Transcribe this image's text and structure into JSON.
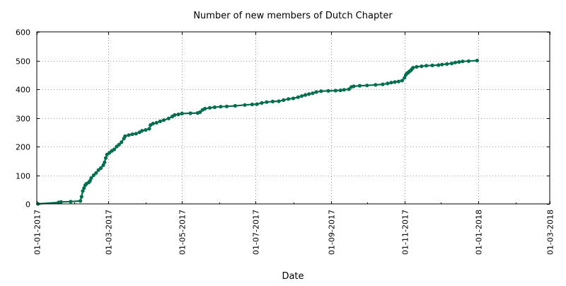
{
  "chart_data": {
    "type": "line",
    "title": "Number of new members of Dutch Chapter",
    "xlabel": "Date",
    "ylabel": "",
    "ylim": [
      0,
      600
    ],
    "xlim": [
      "2017-01-01",
      "2018-03-01"
    ],
    "grid": true,
    "y_ticks": [
      0,
      100,
      200,
      300,
      400,
      500,
      600
    ],
    "x_ticks": [
      {
        "date": "2017-01-01",
        "label": "01-01-2017"
      },
      {
        "date": "2017-03-01",
        "label": "01-03-2017"
      },
      {
        "date": "2017-05-01",
        "label": "01-05-2017"
      },
      {
        "date": "2017-07-01",
        "label": "01-07-2017"
      },
      {
        "date": "2017-09-01",
        "label": "01-09-2017"
      },
      {
        "date": "2017-11-01",
        "label": "01-11-2017"
      },
      {
        "date": "2018-01-01",
        "label": "01-01-2018"
      },
      {
        "date": "2018-03-01",
        "label": "01-03-2018"
      }
    ],
    "series": [
      {
        "color": "#006d4f",
        "points": [
          {
            "x": "2017-01-02",
            "y": 0
          },
          {
            "x": "2017-01-19",
            "y": 5
          },
          {
            "x": "2017-01-21",
            "y": 7
          },
          {
            "x": "2017-01-29",
            "y": 8
          },
          {
            "x": "2017-02-06",
            "y": 10
          },
          {
            "x": "2017-02-07",
            "y": 25
          },
          {
            "x": "2017-02-08",
            "y": 45
          },
          {
            "x": "2017-02-09",
            "y": 55
          },
          {
            "x": "2017-02-10",
            "y": 65
          },
          {
            "x": "2017-02-11",
            "y": 70
          },
          {
            "x": "2017-02-13",
            "y": 75
          },
          {
            "x": "2017-02-14",
            "y": 80
          },
          {
            "x": "2017-02-15",
            "y": 90
          },
          {
            "x": "2017-02-17",
            "y": 100
          },
          {
            "x": "2017-02-19",
            "y": 108
          },
          {
            "x": "2017-02-21",
            "y": 118
          },
          {
            "x": "2017-02-23",
            "y": 125
          },
          {
            "x": "2017-02-25",
            "y": 135
          },
          {
            "x": "2017-02-26",
            "y": 145
          },
          {
            "x": "2017-02-27",
            "y": 160
          },
          {
            "x": "2017-02-28",
            "y": 172
          },
          {
            "x": "2017-03-02",
            "y": 178
          },
          {
            "x": "2017-03-04",
            "y": 185
          },
          {
            "x": "2017-03-06",
            "y": 190
          },
          {
            "x": "2017-03-08",
            "y": 200
          },
          {
            "x": "2017-03-10",
            "y": 207
          },
          {
            "x": "2017-03-12",
            "y": 215
          },
          {
            "x": "2017-03-14",
            "y": 228
          },
          {
            "x": "2017-03-15",
            "y": 236
          },
          {
            "x": "2017-03-18",
            "y": 240
          },
          {
            "x": "2017-03-21",
            "y": 243
          },
          {
            "x": "2017-03-24",
            "y": 245
          },
          {
            "x": "2017-03-27",
            "y": 250
          },
          {
            "x": "2017-03-29",
            "y": 255
          },
          {
            "x": "2017-04-01",
            "y": 258
          },
          {
            "x": "2017-04-04",
            "y": 262
          },
          {
            "x": "2017-04-05",
            "y": 275
          },
          {
            "x": "2017-04-07",
            "y": 280
          },
          {
            "x": "2017-04-10",
            "y": 283
          },
          {
            "x": "2017-04-13",
            "y": 288
          },
          {
            "x": "2017-04-16",
            "y": 292
          },
          {
            "x": "2017-04-20",
            "y": 298
          },
          {
            "x": "2017-04-23",
            "y": 305
          },
          {
            "x": "2017-04-25",
            "y": 310
          },
          {
            "x": "2017-04-28",
            "y": 312
          },
          {
            "x": "2017-05-01",
            "y": 315
          },
          {
            "x": "2017-05-08",
            "y": 316
          },
          {
            "x": "2017-05-14",
            "y": 317
          },
          {
            "x": "2017-05-16",
            "y": 320
          },
          {
            "x": "2017-05-18",
            "y": 328
          },
          {
            "x": "2017-05-20",
            "y": 332
          },
          {
            "x": "2017-05-24",
            "y": 335
          },
          {
            "x": "2017-05-28",
            "y": 337
          },
          {
            "x": "2017-06-02",
            "y": 339
          },
          {
            "x": "2017-06-07",
            "y": 340
          },
          {
            "x": "2017-06-14",
            "y": 342
          },
          {
            "x": "2017-06-22",
            "y": 345
          },
          {
            "x": "2017-06-28",
            "y": 347
          },
          {
            "x": "2017-07-02",
            "y": 348
          },
          {
            "x": "2017-07-06",
            "y": 352
          },
          {
            "x": "2017-07-10",
            "y": 355
          },
          {
            "x": "2017-07-15",
            "y": 357
          },
          {
            "x": "2017-07-20",
            "y": 358
          },
          {
            "x": "2017-07-24",
            "y": 362
          },
          {
            "x": "2017-07-28",
            "y": 366
          },
          {
            "x": "2017-08-01",
            "y": 368
          },
          {
            "x": "2017-08-05",
            "y": 372
          },
          {
            "x": "2017-08-08",
            "y": 376
          },
          {
            "x": "2017-08-11",
            "y": 380
          },
          {
            "x": "2017-08-14",
            "y": 383
          },
          {
            "x": "2017-08-17",
            "y": 386
          },
          {
            "x": "2017-08-20",
            "y": 390
          },
          {
            "x": "2017-08-24",
            "y": 393
          },
          {
            "x": "2017-08-30",
            "y": 394
          },
          {
            "x": "2017-09-05",
            "y": 395
          },
          {
            "x": "2017-09-09",
            "y": 396
          },
          {
            "x": "2017-09-12",
            "y": 398
          },
          {
            "x": "2017-09-16",
            "y": 400
          },
          {
            "x": "2017-09-18",
            "y": 408
          },
          {
            "x": "2017-09-20",
            "y": 410
          },
          {
            "x": "2017-09-25",
            "y": 412
          },
          {
            "x": "2017-10-01",
            "y": 413
          },
          {
            "x": "2017-10-08",
            "y": 415
          },
          {
            "x": "2017-10-14",
            "y": 417
          },
          {
            "x": "2017-10-18",
            "y": 420
          },
          {
            "x": "2017-10-21",
            "y": 423
          },
          {
            "x": "2017-10-24",
            "y": 425
          },
          {
            "x": "2017-10-27",
            "y": 427
          },
          {
            "x": "2017-10-30",
            "y": 430
          },
          {
            "x": "2017-11-01",
            "y": 440
          },
          {
            "x": "2017-11-02",
            "y": 450
          },
          {
            "x": "2017-11-03",
            "y": 455
          },
          {
            "x": "2017-11-04",
            "y": 458
          },
          {
            "x": "2017-11-05",
            "y": 462
          },
          {
            "x": "2017-11-06",
            "y": 465
          },
          {
            "x": "2017-11-07",
            "y": 470
          },
          {
            "x": "2017-11-08",
            "y": 475
          },
          {
            "x": "2017-11-11",
            "y": 478
          },
          {
            "x": "2017-11-15",
            "y": 480
          },
          {
            "x": "2017-11-19",
            "y": 482
          },
          {
            "x": "2017-11-24",
            "y": 483
          },
          {
            "x": "2017-11-29",
            "y": 484
          },
          {
            "x": "2017-12-02",
            "y": 486
          },
          {
            "x": "2017-12-06",
            "y": 488
          },
          {
            "x": "2017-12-10",
            "y": 490
          },
          {
            "x": "2017-12-13",
            "y": 493
          },
          {
            "x": "2017-12-16",
            "y": 495
          },
          {
            "x": "2017-12-19",
            "y": 497
          },
          {
            "x": "2017-12-24",
            "y": 498
          },
          {
            "x": "2017-12-31",
            "y": 500
          }
        ]
      }
    ]
  }
}
